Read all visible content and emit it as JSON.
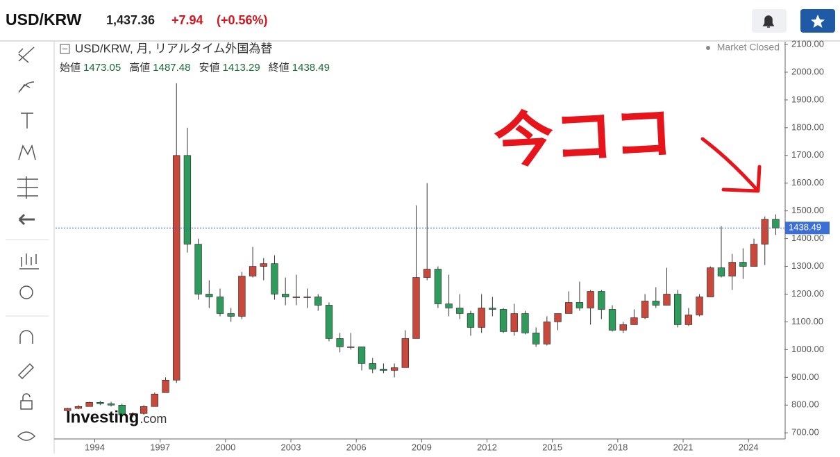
{
  "header": {
    "symbol": "USD/KRW",
    "price": "1,437.36",
    "change": "+7.94",
    "change_pct": "(+0.56%)"
  },
  "chart_data": {
    "type": "candlestick",
    "title": "USD/KRW, 月, リアルタイム外国為替",
    "status": "Market Closed",
    "ohlc_legend": [
      {
        "label": "始値",
        "value": 1473.05
      },
      {
        "label": "高値",
        "value": 1487.48
      },
      {
        "label": "安値",
        "value": 1413.29
      },
      {
        "label": "終値",
        "value": 1438.49
      }
    ],
    "x": [
      1992.75,
      1993.25,
      1993.75,
      1994.25,
      1994.75,
      1995.25,
      1995.75,
      1996.25,
      1996.75,
      1997.25,
      1997.75,
      1998.25,
      1998.75,
      1999.25,
      1999.75,
      2000.25,
      2000.75,
      2001.25,
      2001.75,
      2002.25,
      2002.75,
      2003.25,
      2003.75,
      2004.25,
      2004.75,
      2005.25,
      2005.75,
      2006.25,
      2006.75,
      2007.25,
      2007.75,
      2008.25,
      2008.75,
      2009.25,
      2009.75,
      2010.25,
      2010.75,
      2011.25,
      2011.75,
      2012.25,
      2012.75,
      2013.25,
      2013.75,
      2014.25,
      2014.75,
      2015.25,
      2015.75,
      2016.25,
      2016.75,
      2017.25,
      2017.75,
      2018.25,
      2018.75,
      2019.25,
      2019.75,
      2020.25,
      2020.75,
      2021.25,
      2021.75,
      2022.25,
      2022.75,
      2023.25,
      2023.75,
      2024.25,
      2024.75,
      2025.25
    ],
    "open": [
      780,
      788,
      795,
      810,
      805,
      800,
      765,
      770,
      795,
      845,
      890,
      1700,
      1380,
      1200,
      1190,
      1130,
      1120,
      1265,
      1300,
      1310,
      1200,
      1190,
      1190,
      1190,
      1160,
      1040,
      1010,
      1010,
      950,
      930,
      925,
      935,
      1040,
      1260,
      1290,
      1165,
      1150,
      1130,
      1080,
      1150,
      1145,
      1065,
      1130,
      1060,
      1020,
      1100,
      1130,
      1170,
      1150,
      1210,
      1145,
      1070,
      1090,
      1115,
      1175,
      1160,
      1200,
      1090,
      1125,
      1190,
      1295,
      1265,
      1315,
      1300,
      1380,
      1470
    ],
    "high": [
      790,
      800,
      812,
      815,
      812,
      805,
      775,
      800,
      845,
      900,
      1960,
      1800,
      1400,
      1250,
      1220,
      1150,
      1280,
      1370,
      1330,
      1340,
      1260,
      1270,
      1220,
      1200,
      1170,
      1060,
      1060,
      1010,
      970,
      950,
      950,
      1070,
      1520,
      1600,
      1300,
      1270,
      1200,
      1140,
      1200,
      1190,
      1150,
      1165,
      1140,
      1080,
      1120,
      1130,
      1210,
      1245,
      1215,
      1215,
      1160,
      1100,
      1145,
      1200,
      1225,
      1295,
      1215,
      1150,
      1200,
      1300,
      1445,
      1345,
      1365,
      1400,
      1480,
      1487.48
    ],
    "low": [
      775,
      785,
      795,
      800,
      795,
      760,
      755,
      765,
      795,
      845,
      880,
      1350,
      1180,
      1150,
      1120,
      1100,
      1110,
      1260,
      1250,
      1180,
      1160,
      1160,
      1150,
      1140,
      1030,
      990,
      1000,
      925,
      915,
      915,
      900,
      935,
      1040,
      1250,
      1150,
      1120,
      1110,
      1050,
      1060,
      1120,
      1060,
      1050,
      1055,
      1010,
      1015,
      1070,
      1130,
      1140,
      1090,
      1110,
      1065,
      1060,
      1090,
      1110,
      1150,
      1160,
      1080,
      1085,
      1120,
      1190,
      1260,
      1215,
      1255,
      1300,
      1305,
      1413.29
    ],
    "close": [
      788,
      795,
      810,
      805,
      800,
      765,
      770,
      795,
      840,
      890,
      1700,
      1380,
      1200,
      1190,
      1130,
      1120,
      1265,
      1300,
      1310,
      1200,
      1190,
      1190,
      1190,
      1160,
      1040,
      1010,
      1010,
      950,
      930,
      925,
      935,
      1040,
      1260,
      1290,
      1165,
      1150,
      1130,
      1080,
      1150,
      1145,
      1065,
      1130,
      1060,
      1020,
      1100,
      1130,
      1170,
      1150,
      1210,
      1145,
      1070,
      1090,
      1115,
      1175,
      1160,
      1200,
      1090,
      1125,
      1190,
      1295,
      1265,
      1315,
      1300,
      1380,
      1470,
      1438.49
    ],
    "up_color": "#c9483c",
    "down_color": "#2e9a5b",
    "last_price": 1438.49,
    "xlim": [
      1992.2,
      2025.65
    ],
    "ylim": [
      678,
      2110
    ],
    "xticks": [
      1994,
      1997,
      2000,
      2003,
      2006,
      2009,
      2012,
      2015,
      2018,
      2021,
      2024
    ],
    "yticks": [
      {
        "value": 700,
        "label": "700.00"
      },
      {
        "value": 800,
        "label": "800.00"
      },
      {
        "value": 900,
        "label": "900.00"
      },
      {
        "value": 1000,
        "label": "1000.00"
      },
      {
        "value": 1100,
        "label": "1100.00"
      },
      {
        "value": 1200,
        "label": "1200.00"
      },
      {
        "value": 1300,
        "label": "1300.00"
      },
      {
        "value": 1400,
        "label": "1400.00"
      },
      {
        "value": 1500,
        "label": "1500.00"
      },
      {
        "value": 1600,
        "label": "1600.00"
      },
      {
        "value": 1700,
        "label": "1700.00"
      },
      {
        "value": 1800,
        "label": "1800.00"
      },
      {
        "value": 1900,
        "label": "1900.00"
      },
      {
        "value": 2000,
        "label": "2000.00"
      },
      {
        "value": 2100,
        "label": "2100.00"
      }
    ],
    "watermark": "Investing",
    "watermark_suffix": ".com",
    "annotation": "今ココ"
  }
}
